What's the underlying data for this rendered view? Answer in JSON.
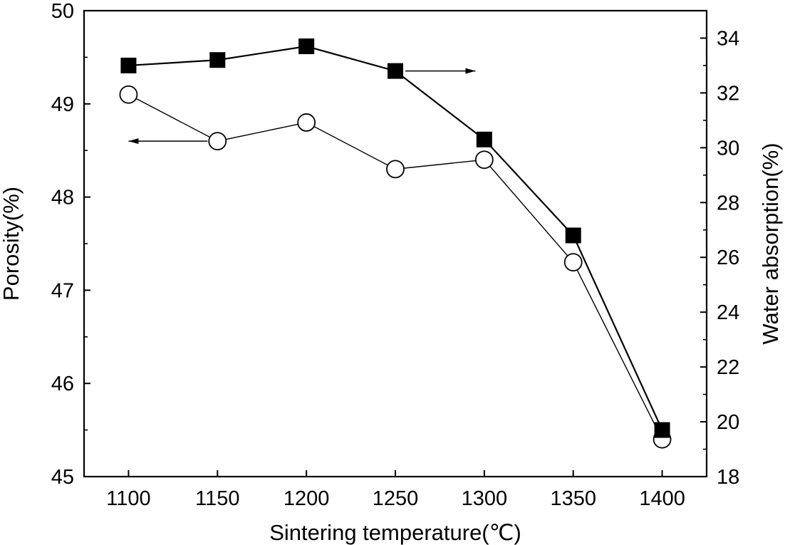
{
  "chart_data": {
    "type": "line",
    "xlabel": "Sintering temperature(℃)",
    "ylabel": "Porosity(%)",
    "y2label": "Water absorption(%)",
    "x": [
      1100,
      1150,
      1200,
      1250,
      1300,
      1350,
      1400
    ],
    "xlim": [
      1075,
      1425
    ],
    "xticks": [
      "1100",
      "1150",
      "1200",
      "1250",
      "1300",
      "1350",
      "1400"
    ],
    "ylim": [
      45,
      50
    ],
    "yticks": [
      "45",
      "46",
      "47",
      "48",
      "49",
      "50"
    ],
    "y2lim": [
      18,
      35
    ],
    "y2ticks": [
      "18",
      "20",
      "22",
      "24",
      "26",
      "28",
      "30",
      "32",
      "34"
    ],
    "grid": false,
    "series": [
      {
        "axis": "left",
        "marker": "open-circle",
        "values": [
          49.1,
          48.6,
          48.8,
          48.3,
          48.4,
          47.3,
          45.4
        ],
        "arrow": {
          "from_x": 1150,
          "to_x": 1100,
          "y": 48.6
        }
      },
      {
        "axis": "right",
        "marker": "filled-square",
        "values": [
          33.0,
          33.2,
          33.7,
          32.8,
          30.3,
          26.8,
          19.7
        ],
        "arrow": {
          "from_x": 1250,
          "to_x": 1295,
          "y": 32.8
        }
      }
    ]
  }
}
